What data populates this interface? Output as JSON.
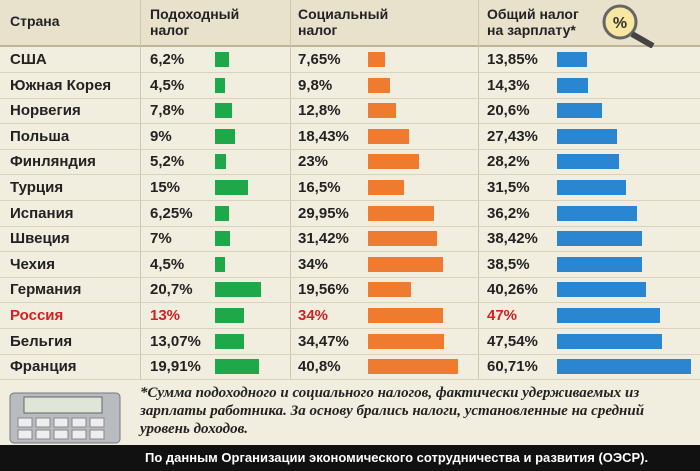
{
  "chart_data": {
    "type": "table-bar",
    "category_label": "Страна",
    "categories": [
      "США",
      "Южная Корея",
      "Норвегия",
      "Польша",
      "Финляндия",
      "Турция",
      "Испания",
      "Швеция",
      "Чехия",
      "Германия",
      "Россия",
      "Бельгия",
      "Франция"
    ],
    "series": [
      {
        "name": "Подоходный налог",
        "color": "#1fa84a",
        "values": [
          6.2,
          4.5,
          7.8,
          9,
          5.2,
          15,
          6.25,
          7,
          4.5,
          20.7,
          13,
          13.07,
          19.91
        ],
        "value_labels": [
          "6,2%",
          "4,5%",
          "7,8%",
          "9%",
          "5,2%",
          "15%",
          "6,25%",
          "7%",
          "4,5%",
          "20,7%",
          "13%",
          "13,07%",
          "19,91%"
        ]
      },
      {
        "name": "Социальный налог",
        "color": "#ee7b30",
        "values": [
          7.65,
          9.8,
          12.8,
          18.43,
          23,
          16.5,
          29.95,
          31.42,
          34,
          19.56,
          34,
          34.47,
          40.8
        ],
        "value_labels": [
          "7,65%",
          "9,8%",
          "12,8%",
          "18,43%",
          "23%",
          "16,5%",
          "29,95%",
          "31,42%",
          "34%",
          "19,56%",
          "34%",
          "34,47%",
          "40,8%"
        ]
      },
      {
        "name": "Общий налог на зарплату*",
        "color": "#2a86d0",
        "values": [
          13.85,
          14.3,
          20.6,
          27.43,
          28.2,
          31.5,
          36.2,
          38.42,
          38.5,
          40.26,
          47,
          47.54,
          60.71
        ],
        "value_labels": [
          "13,85%",
          "14,3%",
          "20,6%",
          "27,43%",
          "28,2%",
          "31,5%",
          "36,2%",
          "38,42%",
          "38,5%",
          "40,26%",
          "47%",
          "47,54%",
          "60,71%"
        ]
      }
    ],
    "highlight_index": 10,
    "highlight_color": "#d42020",
    "footnote": "*Сумма подоходного и социального налогов, фактически удерживаемых из зарплаты работника. За основу брались налоги, установленные на средний уровень доходов.",
    "source": "По данным Организации экономического сотрудничества и развития (ОЭСР)."
  }
}
